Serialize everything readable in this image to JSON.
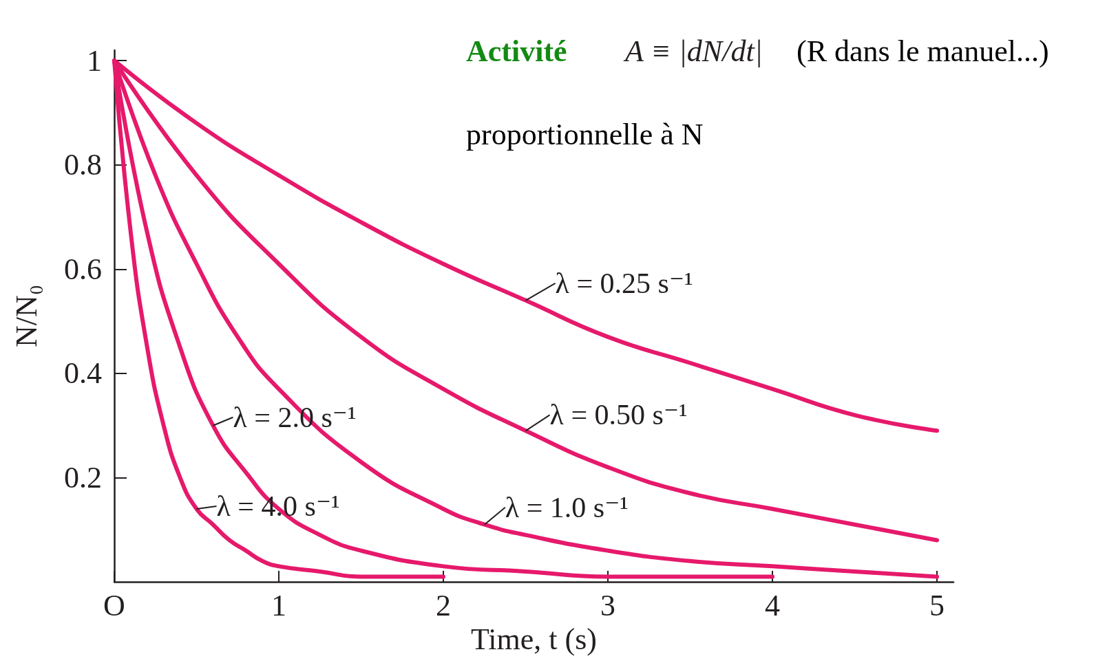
{
  "chart_data": {
    "type": "line",
    "xlabel": "Time, t (s)",
    "ylabel": "N/N₀",
    "annotations": [
      "Activité",
      "A ≡ |dN/dt|",
      "(R dans le manuel...)",
      "proportionnelle à N"
    ],
    "xlim": [
      0,
      5.1
    ],
    "ylim": [
      0,
      1.02
    ],
    "xticks": [
      {
        "value": 0,
        "label": "O"
      },
      1,
      2,
      3,
      4,
      5
    ],
    "yticks": [
      0.2,
      0.4,
      0.6,
      0.8,
      1
    ],
    "marker": "none",
    "line_style": "solid",
    "series": [
      {
        "name": "λ = 0.25 s⁻¹",
        "color": "#e6196b",
        "x": [
          0,
          0.5,
          1,
          1.5,
          2,
          2.5,
          3,
          3.5,
          4,
          4.5,
          5
        ],
        "values": [
          1,
          0.88,
          0.78,
          0.69,
          0.61,
          0.54,
          0.47,
          0.42,
          0.37,
          0.32,
          0.29
        ]
      },
      {
        "name": "λ = 0.50 s⁻¹",
        "color": "#e6196b",
        "x": [
          0,
          0.5,
          1,
          1.5,
          2,
          2.5,
          3,
          3.5,
          4,
          4.5,
          5
        ],
        "values": [
          1,
          0.78,
          0.61,
          0.47,
          0.37,
          0.29,
          0.22,
          0.17,
          0.14,
          0.11,
          0.08
        ]
      },
      {
        "name": "λ = 1.0 s⁻¹",
        "color": "#e6196b",
        "x": [
          0,
          0.25,
          0.5,
          0.75,
          1,
          1.5,
          2,
          2.25,
          2.5,
          3,
          3.5,
          4,
          4.5,
          5
        ],
        "values": [
          1,
          0.78,
          0.61,
          0.47,
          0.37,
          0.23,
          0.14,
          0.11,
          0.09,
          0.06,
          0.04,
          0.03,
          0.02,
          0.01
        ]
      },
      {
        "name": "λ = 2.0 s⁻¹",
        "color": "#e6196b",
        "x": [
          0,
          0.2,
          0.4,
          0.6,
          0.8,
          1,
          1.25,
          1.5,
          2,
          2.5,
          3,
          3.5,
          4
        ],
        "values": [
          1,
          0.67,
          0.45,
          0.3,
          0.21,
          0.14,
          0.09,
          0.06,
          0.03,
          0.02,
          0.01,
          0.01,
          0.01
        ]
      },
      {
        "name": "λ = 4.0 s⁻¹",
        "color": "#e6196b",
        "x": [
          0,
          0.1,
          0.2,
          0.3,
          0.4,
          0.5,
          0.6,
          0.7,
          0.8,
          0.9,
          1,
          1.25,
          1.5,
          2
        ],
        "values": [
          1,
          0.67,
          0.45,
          0.3,
          0.2,
          0.14,
          0.11,
          0.08,
          0.06,
          0.04,
          0.03,
          0.02,
          0.01,
          0.01
        ]
      }
    ]
  }
}
